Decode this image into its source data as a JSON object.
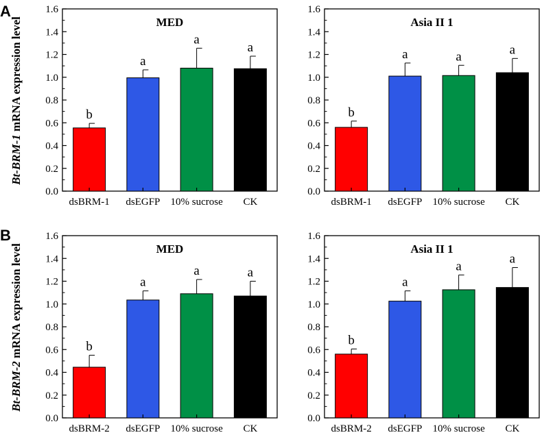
{
  "panels": {
    "A": {
      "letter": "A",
      "ylabel": {
        "gene": "Bt-BRM-1",
        "rest": " mRNA expression level"
      }
    },
    "B": {
      "letter": "B",
      "ylabel": {
        "gene": "Bt-BRM-2",
        "rest": " mRNA expression level"
      }
    }
  },
  "chart_data": [
    {
      "type": "bar",
      "panel": "A",
      "title": "MED",
      "categories": [
        "dsBRM-1",
        "dsEGFP",
        "10% sucrose",
        "CK"
      ],
      "values": [
        0.555,
        0.995,
        1.08,
        1.075
      ],
      "errors": [
        0.04,
        0.07,
        0.175,
        0.11
      ],
      "labels": [
        "b",
        "a",
        "a",
        "a"
      ],
      "colors": [
        "#ff0000",
        "#2e58e6",
        "#009046",
        "#000000"
      ],
      "ylim": [
        0,
        1.6
      ],
      "yticks": [
        "0.0",
        "0.2",
        "0.4",
        "0.6",
        "0.8",
        "1.0",
        "1.2",
        "1.4",
        "1.6"
      ],
      "xlabel": "",
      "ylabel": "Bt-BRM-1 mRNA expression level"
    },
    {
      "type": "bar",
      "panel": "A",
      "title": "Asia II 1",
      "categories": [
        "dsBRM-1",
        "dsEGFP",
        "10% sucrose",
        "CK"
      ],
      "values": [
        0.56,
        1.01,
        1.015,
        1.04
      ],
      "errors": [
        0.055,
        0.115,
        0.09,
        0.125
      ],
      "labels": [
        "b",
        "a",
        "a",
        "a"
      ],
      "colors": [
        "#ff0000",
        "#2e58e6",
        "#009046",
        "#000000"
      ],
      "ylim": [
        0,
        1.6
      ],
      "yticks": [
        "0.0",
        "0.2",
        "0.4",
        "0.6",
        "0.8",
        "1.0",
        "1.2",
        "1.4",
        "1.6"
      ],
      "xlabel": "",
      "ylabel": ""
    },
    {
      "type": "bar",
      "panel": "B",
      "title": "MED",
      "categories": [
        "dsBRM-2",
        "dsEGFP",
        "10% sucrose",
        "CK"
      ],
      "values": [
        0.445,
        1.035,
        1.09,
        1.07
      ],
      "errors": [
        0.105,
        0.08,
        0.125,
        0.13
      ],
      "labels": [
        "b",
        "a",
        "a",
        "a"
      ],
      "colors": [
        "#ff0000",
        "#2e58e6",
        "#009046",
        "#000000"
      ],
      "ylim": [
        0,
        1.6
      ],
      "yticks": [
        "0.0",
        "0.2",
        "0.4",
        "0.6",
        "0.8",
        "1.0",
        "1.2",
        "1.4",
        "1.6"
      ],
      "xlabel": "",
      "ylabel": "Bt-BRM-2 mRNA expression level"
    },
    {
      "type": "bar",
      "panel": "B",
      "title": "Asia II 1",
      "categories": [
        "dsBRM-2",
        "dsEGFP",
        "10% sucrose",
        "CK"
      ],
      "values": [
        0.56,
        1.025,
        1.125,
        1.145
      ],
      "errors": [
        0.045,
        0.09,
        0.13,
        0.175
      ],
      "labels": [
        "b",
        "a",
        "a",
        "a"
      ],
      "colors": [
        "#ff0000",
        "#2e58e6",
        "#009046",
        "#000000"
      ],
      "ylim": [
        0,
        1.6
      ],
      "yticks": [
        "0.0",
        "0.2",
        "0.4",
        "0.6",
        "0.8",
        "1.0",
        "1.2",
        "1.4",
        "1.6"
      ],
      "xlabel": "",
      "ylabel": ""
    }
  ]
}
